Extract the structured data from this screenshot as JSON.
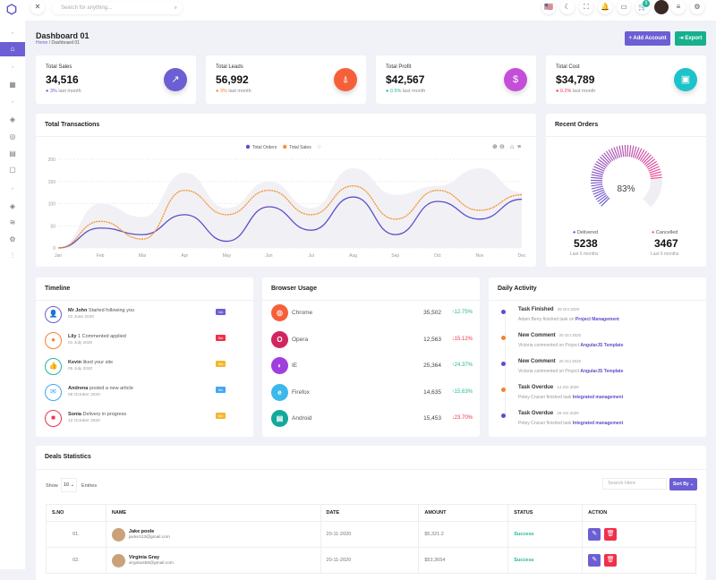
{
  "header": {
    "search_placeholder": "Search for anything...",
    "cart_count": "5"
  },
  "page": {
    "title": "Dashboard 01",
    "breadcrumb_home": "Home",
    "breadcrumb_current": "Dashboard 01",
    "add_account": "+ Add Account",
    "export": "⇥ Export"
  },
  "stats": [
    {
      "label": "Total Sales",
      "value": "34,516",
      "change": "3%",
      "suffix": "last month",
      "color": "#6c5fd4",
      "change_color": "#6c5fd4",
      "icon": "trending-up-icon"
    },
    {
      "label": "Total Leads",
      "value": "56,992",
      "change": "3%",
      "suffix": "last month",
      "color": "#f5603a",
      "change_color": "#f7802f",
      "icon": "rocket-icon"
    },
    {
      "label": "Total Profit",
      "value": "$42,567",
      "change": "0.5%",
      "suffix": "last month",
      "color": "#c34fd8",
      "change_color": "#23b79a",
      "icon": "dollar-icon"
    },
    {
      "label": "Total Cost",
      "value": "$34,789",
      "change": "0.2%",
      "suffix": "last month",
      "color": "#1cc3c9",
      "change_color": "#f0304b",
      "icon": "briefcase-icon"
    }
  ],
  "transactions": {
    "title": "Total Transactions"
  },
  "chart_data": {
    "type": "line",
    "categories": [
      "Jan",
      "Feb",
      "Mar",
      "Apr",
      "May",
      "Jun",
      "Jul",
      "Aug",
      "Sep",
      "Oct",
      "Nov",
      "Dec"
    ],
    "ylim": [
      0,
      200
    ],
    "yticks": [
      0,
      50,
      100,
      150,
      200
    ],
    "grid": true,
    "legend": "top-center",
    "series": [
      {
        "name": "Total Orders",
        "color": "#5b4fc8",
        "values": [
          0,
          45,
          30,
          75,
          15,
          93,
          40,
          115,
          30,
          105,
          65,
          110
        ]
      },
      {
        "name": "Total Sales",
        "color": "#f7922f",
        "dashed": true,
        "values": [
          0,
          60,
          20,
          130,
          75,
          130,
          75,
          140,
          65,
          130,
          85,
          120
        ]
      },
      {
        "name": "",
        "color": "#f1f1f5",
        "area": true,
        "values": [
          0,
          100,
          70,
          170,
          90,
          150,
          90,
          180,
          120,
          140,
          180,
          125
        ]
      }
    ]
  },
  "recent_orders": {
    "title": "Recent Orders",
    "percent": "83%",
    "percent_value": 83,
    "delivered_label": "Delivered",
    "delivered": "5238",
    "cancelled_label": "Cancelled",
    "cancelled": "3467",
    "period": "Last 6 months"
  },
  "timeline": {
    "title": "Timeline",
    "items": [
      {
        "name": "Mr John",
        "text": "Started following you",
        "date": "01 June 2020",
        "badge": "1m",
        "color": "#6c5fd4",
        "badge_color": "#6c5fd4",
        "icon": "👤"
      },
      {
        "name": "Lily",
        "text": "1 Commented applied",
        "date": "01 July 2020",
        "badge": "5m",
        "color": "#f7802f",
        "badge_color": "#f0304b",
        "icon": "●"
      },
      {
        "name": "Kevin",
        "text": "liked your site",
        "date": "05 July 2020",
        "badge": "5m",
        "color": "#23b79a",
        "badge_color": "#f7b52f",
        "icon": "👍"
      },
      {
        "name": "Andrena",
        "text": "posted a new article",
        "date": "09 October 2020",
        "badge": "5m",
        "color": "#42a5f5",
        "badge_color": "#42a5f5",
        "icon": "✉"
      },
      {
        "name": "Sonia",
        "text": "Delivery in progress",
        "date": "12 October 2020",
        "badge": "5m",
        "color": "#f0304b",
        "badge_color": "#f7b52f",
        "icon": "■"
      }
    ]
  },
  "browser": {
    "title": "Browser Usage",
    "items": [
      {
        "name": "Chrome",
        "value": "35,502",
        "change": "↑12.75%",
        "up": true,
        "color": "#f5603a"
      },
      {
        "name": "Opera",
        "value": "12,563",
        "change": "↓15.12%",
        "up": false,
        "color": "#d02660"
      },
      {
        "name": "IE",
        "value": "25,364",
        "change": "↑24.37%",
        "up": true,
        "color": "#a03ee0"
      },
      {
        "name": "Firefox",
        "value": "14,635",
        "change": "↑15,63%",
        "up": true,
        "color": "#3cb8ea"
      },
      {
        "name": "Android",
        "value": "15,453",
        "change": "↓23.70%",
        "up": false,
        "color": "#14a89b"
      }
    ]
  },
  "activity": {
    "title": "Daily Activity",
    "items": [
      {
        "title": "Task Finished",
        "date": "29 Oct 2020",
        "text": "Adam Berry finished task on",
        "link": "Project Management",
        "color": "#5b4fc8"
      },
      {
        "title": "New Comment",
        "date": "25 Oct 2020",
        "text": "Victoria commented on Project",
        "link": "AngularJS Template",
        "color": "#f7802f"
      },
      {
        "title": "New Comment",
        "date": "25 Oct 2020",
        "text": "Victoria commented on Project",
        "link": "AngularJS Template",
        "color": "#5b4fc8"
      },
      {
        "title": "Task Overdue",
        "date": "14 Oct 2020",
        "text": "Petey Cruiser finished task",
        "link": "Integrated management",
        "color": "#f7802f"
      },
      {
        "title": "Task Overdue",
        "date": "29 Oct 2020",
        "text": "Petey Cruiser finished task",
        "link": "Integrated management",
        "color": "#5b4fc8"
      }
    ]
  },
  "deals": {
    "title": "Deals Statistics",
    "show": "Show",
    "entries_value": "10",
    "entries": "Entries",
    "search_placeholder": "Search Here",
    "sort": "Sort By ⌄",
    "columns": [
      "S.NO",
      "NAME",
      "DATE",
      "AMOUNT",
      "STATUS",
      "ACTION"
    ],
    "rows": [
      {
        "no": "01.",
        "name": "Jake poole",
        "email": "jacke123@gmail.com",
        "date": "20-11-2020",
        "amount": "$5,321.2",
        "status": "Success"
      },
      {
        "no": "02.",
        "name": "Virginia Gray",
        "email": "virginia456@gmail.com",
        "date": "20-11-2020",
        "amount": "$53,3654",
        "status": "Success"
      }
    ]
  }
}
